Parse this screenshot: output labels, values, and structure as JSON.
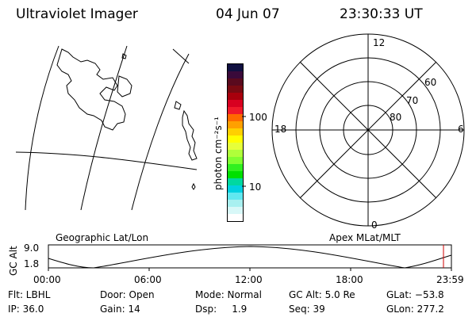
{
  "header": {
    "instrument": "Ultraviolet Imager",
    "date": "04 Jun 07",
    "time": "23:30:33 UT"
  },
  "colorbar": {
    "unit_label": "photon cm⁻²s⁻¹",
    "tick_100": "100",
    "tick_10": "10",
    "colors": [
      "#101040",
      "#3a0a3a",
      "#5a0a1e",
      "#7a0a12",
      "#a8000c",
      "#d80020",
      "#f01a2a",
      "#ff6a00",
      "#ffa000",
      "#ffd000",
      "#ffff00",
      "#e6ff3a",
      "#b0ff3a",
      "#80ff30",
      "#30f020",
      "#00e000",
      "#00d8a0",
      "#00d0e0",
      "#60e8f0",
      "#a8f0f0",
      "#d8f8f8",
      "#ffffff"
    ]
  },
  "polar": {
    "lat_labels": [
      "80",
      "70",
      "60"
    ],
    "mlt_labels": {
      "top": "12",
      "left": "18",
      "right": "6",
      "bottom": "0"
    }
  },
  "timeline": {
    "left_title": "Geographic Lat/Lon",
    "right_title": "Apex MLat/MLT",
    "y_axis_title": "GC Alt",
    "y_ticks": [
      "9.0",
      "1.8"
    ],
    "x_ticks": [
      "00:00",
      "06:00",
      "12:00",
      "18:00",
      "23:59"
    ],
    "current_marker_color": "#d00000"
  },
  "info": {
    "flt": "Flt: LBHL",
    "ip": "IP: 36.0",
    "door": "Door: Open",
    "gain": "Gain: 14",
    "mode": "Mode: Normal",
    "dsp": "Dsp:     1.9",
    "gcalt": "GC Alt: 5.0 Re",
    "seq": "Seq: 39",
    "glat": "GLat: −53.8",
    "glon": "GLon: 277.2"
  }
}
